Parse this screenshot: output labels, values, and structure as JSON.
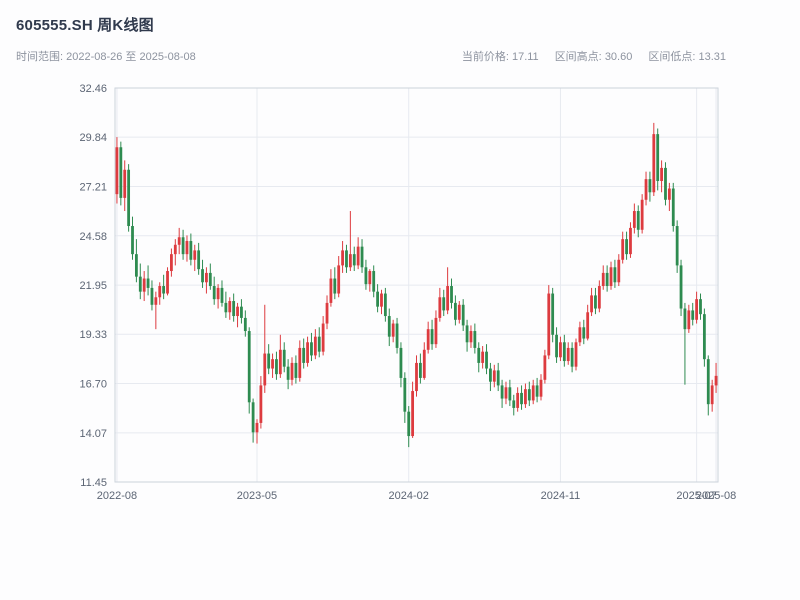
{
  "header": {
    "title": "605555.SH 周K线图",
    "subtitle": "时间范围: 2022-08-26 至 2025-08-08",
    "stats": [
      {
        "label": "当前价格:",
        "value": "17.11"
      },
      {
        "label": "区间高点:",
        "value": "30.60"
      },
      {
        "label": "区间低点:",
        "value": "13.31"
      }
    ]
  },
  "chart_data": {
    "type": "candlestick",
    "title": "605555.SH 周K线图",
    "frequency": "weekly",
    "symbol": "605555.SH",
    "date_range": {
      "start": "2022-08-26",
      "end": "2025-08-08"
    },
    "current_price": 17.11,
    "range_high": 30.6,
    "range_low": 13.31,
    "ylim": [
      11.45,
      32.46
    ],
    "y_ticks": [
      11.45,
      14.07,
      16.7,
      19.33,
      21.95,
      24.58,
      27.21,
      29.84,
      32.46
    ],
    "x_ticks": [
      {
        "index": 0,
        "label": "2022-08"
      },
      {
        "index": 36,
        "label": "2023-05"
      },
      {
        "index": 75,
        "label": "2024-02"
      },
      {
        "index": 114,
        "label": "2024-11"
      },
      {
        "index": 149,
        "label": "2025-07"
      },
      {
        "index": 154,
        "label": "2025-08"
      }
    ],
    "grid": true,
    "legend": "none",
    "colors": {
      "up": "#dd3b3f",
      "down": "#2e8b50",
      "grid": "#e7eaf0",
      "axis": "#ccd2db",
      "tick_text": "#5c6574"
    },
    "candles_format": [
      "open",
      "high",
      "low",
      "close"
    ],
    "candles": [
      [
        26.8,
        29.84,
        26.3,
        29.3
      ],
      [
        29.3,
        29.6,
        26.2,
        26.6
      ],
      [
        26.6,
        28.6,
        25.9,
        28.1
      ],
      [
        28.1,
        28.4,
        24.8,
        25.1
      ],
      [
        25.1,
        25.6,
        23.3,
        23.6
      ],
      [
        23.6,
        24.4,
        22.1,
        22.4
      ],
      [
        22.4,
        23.1,
        21.2,
        21.6
      ],
      [
        21.6,
        22.7,
        21.1,
        22.3
      ],
      [
        22.3,
        23.0,
        21.4,
        21.8
      ],
      [
        21.8,
        22.2,
        20.6,
        20.9
      ],
      [
        20.9,
        21.6,
        19.6,
        21.3
      ],
      [
        21.3,
        22.1,
        20.9,
        21.9
      ],
      [
        21.9,
        22.5,
        21.2,
        21.5
      ],
      [
        21.5,
        22.9,
        21.4,
        22.7
      ],
      [
        22.7,
        23.9,
        22.4,
        23.6
      ],
      [
        23.6,
        24.4,
        23.0,
        24.1
      ],
      [
        24.1,
        25.0,
        23.6,
        24.5
      ],
      [
        24.5,
        24.9,
        23.3,
        23.6
      ],
      [
        23.6,
        24.6,
        23.2,
        24.3
      ],
      [
        24.3,
        24.7,
        23.0,
        23.3
      ],
      [
        23.3,
        24.1,
        22.7,
        23.8
      ],
      [
        23.8,
        24.2,
        22.5,
        22.8
      ],
      [
        22.8,
        23.3,
        21.8,
        22.1
      ],
      [
        22.1,
        22.9,
        21.5,
        22.6
      ],
      [
        22.6,
        23.1,
        21.7,
        21.9
      ],
      [
        21.9,
        22.4,
        20.9,
        21.2
      ],
      [
        21.2,
        22.0,
        20.7,
        21.8
      ],
      [
        21.8,
        22.2,
        20.8,
        21.0
      ],
      [
        21.0,
        21.6,
        20.2,
        20.5
      ],
      [
        20.5,
        21.3,
        20.1,
        21.1
      ],
      [
        21.1,
        21.5,
        20.0,
        20.3
      ],
      [
        20.3,
        21.0,
        19.7,
        20.8
      ],
      [
        20.8,
        21.2,
        19.9,
        20.2
      ],
      [
        20.2,
        20.6,
        19.2,
        19.5
      ],
      [
        19.5,
        19.7,
        15.1,
        15.7
      ],
      [
        15.7,
        15.9,
        13.55,
        14.1
      ],
      [
        14.1,
        14.8,
        13.5,
        14.6
      ],
      [
        14.6,
        17.1,
        14.3,
        16.6
      ],
      [
        16.6,
        20.9,
        16.2,
        18.3
      ],
      [
        18.3,
        18.8,
        17.2,
        17.5
      ],
      [
        17.5,
        18.3,
        17.0,
        18.0
      ],
      [
        18.0,
        18.4,
        16.9,
        17.2
      ],
      [
        17.2,
        19.3,
        17.0,
        18.5
      ],
      [
        18.5,
        18.9,
        17.3,
        17.6
      ],
      [
        17.6,
        18.0,
        16.4,
        16.9
      ],
      [
        16.9,
        18.1,
        16.6,
        17.8
      ],
      [
        17.8,
        18.2,
        16.7,
        17.0
      ],
      [
        17.0,
        19.0,
        16.8,
        18.6
      ],
      [
        18.6,
        19.1,
        17.5,
        17.8
      ],
      [
        17.8,
        19.2,
        17.6,
        18.9
      ],
      [
        18.9,
        19.4,
        17.9,
        18.2
      ],
      [
        18.2,
        19.6,
        18.0,
        19.2
      ],
      [
        19.2,
        19.7,
        18.1,
        18.4
      ],
      [
        18.4,
        20.3,
        18.2,
        19.9
      ],
      [
        19.9,
        21.4,
        19.6,
        21.0
      ],
      [
        21.0,
        22.8,
        20.8,
        22.3
      ],
      [
        22.3,
        22.9,
        21.2,
        21.5
      ],
      [
        21.5,
        23.5,
        21.3,
        23.0
      ],
      [
        23.0,
        24.3,
        22.6,
        23.8
      ],
      [
        23.8,
        24.1,
        22.6,
        22.9
      ],
      [
        22.9,
        25.9,
        22.7,
        23.6
      ],
      [
        23.6,
        24.0,
        22.7,
        23.0
      ],
      [
        23.0,
        24.5,
        22.8,
        24.0
      ],
      [
        24.0,
        24.4,
        22.6,
        22.9
      ],
      [
        22.9,
        23.3,
        21.7,
        22.0
      ],
      [
        22.0,
        22.8,
        21.6,
        22.7
      ],
      [
        22.7,
        23.0,
        21.3,
        21.6
      ],
      [
        21.6,
        22.0,
        20.5,
        20.8
      ],
      [
        20.8,
        21.7,
        20.4,
        21.5
      ],
      [
        21.5,
        21.8,
        20.0,
        20.3
      ],
      [
        20.3,
        20.7,
        18.7,
        19.2
      ],
      [
        19.2,
        20.1,
        18.9,
        19.9
      ],
      [
        19.9,
        20.2,
        18.3,
        18.6
      ],
      [
        18.6,
        18.9,
        16.5,
        17.0
      ],
      [
        17.0,
        17.3,
        14.6,
        15.2
      ],
      [
        15.2,
        15.5,
        13.31,
        13.9
      ],
      [
        13.9,
        16.8,
        13.8,
        16.3
      ],
      [
        16.3,
        18.2,
        16.0,
        17.8
      ],
      [
        17.8,
        18.3,
        16.7,
        17.0
      ],
      [
        17.0,
        18.9,
        16.9,
        18.5
      ],
      [
        18.5,
        20.0,
        18.3,
        19.6
      ],
      [
        19.6,
        20.1,
        18.5,
        18.8
      ],
      [
        18.8,
        20.6,
        18.6,
        20.2
      ],
      [
        20.2,
        21.8,
        20.0,
        21.3
      ],
      [
        21.3,
        21.7,
        20.3,
        20.6
      ],
      [
        20.6,
        22.9,
        20.4,
        21.9
      ],
      [
        21.9,
        22.3,
        20.7,
        21.0
      ],
      [
        21.0,
        21.4,
        19.8,
        20.1
      ],
      [
        20.1,
        21.1,
        19.9,
        20.9
      ],
      [
        20.9,
        21.2,
        19.5,
        19.8
      ],
      [
        19.8,
        20.1,
        18.4,
        18.9
      ],
      [
        18.9,
        19.8,
        18.6,
        19.5
      ],
      [
        19.5,
        19.9,
        18.3,
        18.6
      ],
      [
        18.6,
        18.9,
        17.3,
        17.8
      ],
      [
        17.8,
        18.7,
        17.5,
        18.4
      ],
      [
        18.4,
        18.8,
        17.2,
        17.5
      ],
      [
        17.5,
        17.8,
        16.3,
        16.8
      ],
      [
        16.8,
        17.7,
        16.5,
        17.4
      ],
      [
        17.4,
        17.8,
        16.3,
        16.6
      ],
      [
        16.6,
        16.9,
        15.4,
        15.9
      ],
      [
        15.9,
        16.8,
        15.6,
        16.5
      ],
      [
        16.5,
        16.9,
        15.5,
        15.8
      ],
      [
        15.8,
        16.1,
        15.0,
        15.4
      ],
      [
        15.4,
        16.5,
        15.2,
        16.2
      ],
      [
        16.2,
        16.6,
        15.3,
        15.6
      ],
      [
        15.6,
        16.7,
        15.4,
        16.4
      ],
      [
        16.4,
        16.8,
        15.5,
        15.8
      ],
      [
        15.8,
        16.9,
        15.6,
        16.6
      ],
      [
        16.6,
        17.0,
        15.7,
        16.0
      ],
      [
        16.0,
        17.2,
        15.8,
        16.9
      ],
      [
        16.9,
        18.5,
        16.7,
        18.2
      ],
      [
        18.2,
        21.95,
        18.0,
        21.5
      ],
      [
        21.5,
        21.8,
        18.9,
        19.3
      ],
      [
        19.3,
        19.7,
        17.8,
        18.1
      ],
      [
        18.1,
        19.2,
        17.9,
        18.9
      ],
      [
        18.9,
        19.3,
        17.6,
        17.9
      ],
      [
        17.9,
        18.9,
        17.7,
        18.6
      ],
      [
        18.6,
        18.9,
        17.3,
        17.6
      ],
      [
        17.6,
        19.1,
        17.4,
        18.9
      ],
      [
        18.9,
        20.0,
        18.7,
        19.7
      ],
      [
        19.7,
        20.1,
        18.8,
        19.1
      ],
      [
        19.1,
        20.9,
        19.0,
        20.5
      ],
      [
        20.5,
        21.8,
        20.3,
        21.4
      ],
      [
        21.4,
        21.8,
        20.4,
        20.7
      ],
      [
        20.7,
        22.2,
        20.5,
        21.9
      ],
      [
        21.9,
        23.0,
        21.7,
        22.6
      ],
      [
        22.6,
        23.0,
        21.6,
        21.9
      ],
      [
        21.9,
        23.2,
        21.7,
        22.9
      ],
      [
        22.9,
        23.3,
        21.8,
        22.1
      ],
      [
        22.1,
        23.6,
        21.9,
        23.3
      ],
      [
        23.3,
        24.8,
        23.1,
        24.4
      ],
      [
        24.4,
        24.8,
        23.3,
        23.6
      ],
      [
        23.6,
        25.3,
        23.4,
        25.0
      ],
      [
        25.0,
        26.3,
        24.7,
        25.9
      ],
      [
        25.9,
        26.2,
        24.5,
        24.9
      ],
      [
        24.9,
        26.8,
        24.7,
        26.5
      ],
      [
        26.5,
        28.0,
        26.2,
        27.6
      ],
      [
        27.6,
        28.0,
        26.4,
        26.9
      ],
      [
        26.9,
        30.6,
        26.7,
        30.0
      ],
      [
        30.0,
        30.3,
        27.0,
        27.5
      ],
      [
        27.5,
        28.6,
        26.9,
        28.2
      ],
      [
        28.2,
        28.5,
        26.2,
        26.5
      ],
      [
        26.5,
        27.4,
        25.9,
        27.1
      ],
      [
        27.1,
        27.4,
        24.8,
        25.1
      ],
      [
        25.1,
        25.4,
        22.6,
        23.0
      ],
      [
        23.0,
        23.3,
        20.3,
        20.7
      ],
      [
        20.7,
        21.0,
        16.64,
        19.6
      ],
      [
        19.6,
        20.9,
        19.4,
        20.6
      ],
      [
        20.6,
        21.0,
        19.8,
        20.1
      ],
      [
        20.1,
        21.6,
        19.9,
        21.2
      ],
      [
        21.2,
        21.5,
        20.1,
        20.4
      ],
      [
        20.4,
        20.7,
        17.6,
        18.0
      ],
      [
        18.0,
        18.2,
        15.0,
        15.6
      ],
      [
        15.6,
        16.9,
        15.2,
        16.6
      ],
      [
        16.6,
        17.8,
        16.2,
        17.11
      ]
    ]
  }
}
